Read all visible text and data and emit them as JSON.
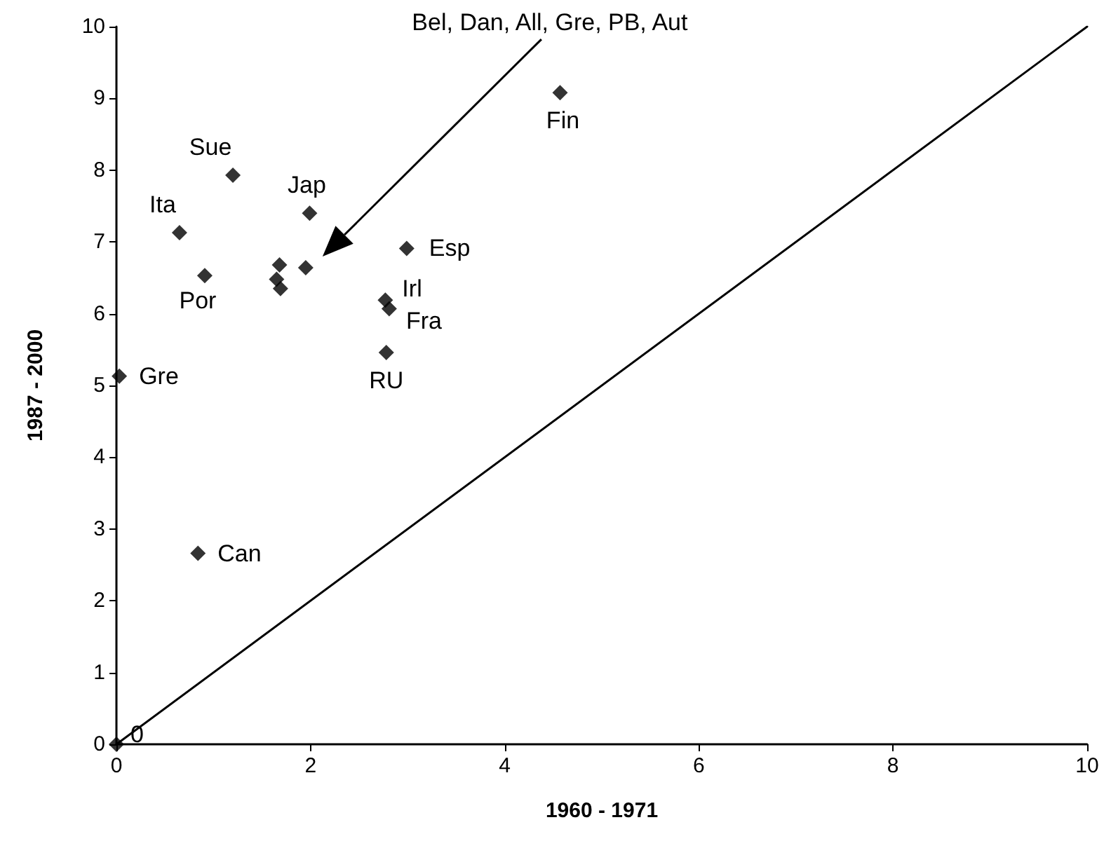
{
  "chart_data": {
    "type": "scatter",
    "xlabel": "1960 - 1971",
    "ylabel": "1987 - 2000",
    "xlim": [
      0,
      10
    ],
    "ylim": [
      0,
      10
    ],
    "xticks": [
      0,
      2,
      4,
      6,
      8,
      10
    ],
    "yticks": [
      0,
      1,
      2,
      3,
      4,
      5,
      6,
      7,
      8,
      9,
      10
    ],
    "grid": false,
    "marker": "diamond",
    "series": [
      {
        "color": "#000000",
        "x": [
          0,
          0.84,
          0.03,
          0.91,
          0.65,
          1.2,
          1.99,
          1.68,
          1.65,
          1.69,
          1.95,
          2.99,
          2.77,
          2.81,
          2.78,
          4.57
        ],
        "values": [
          0,
          2.66,
          5.13,
          6.53,
          7.13,
          7.93,
          7.4,
          6.68,
          6.48,
          6.35,
          6.64,
          6.91,
          6.19,
          6.07,
          5.46,
          9.08
        ]
      },
      {
        "type": "line",
        "color": "#000000",
        "marker": "none",
        "x": [
          0,
          10
        ],
        "values": [
          0,
          10
        ]
      }
    ],
    "annotations": [
      {
        "text": "0",
        "x": 0,
        "y": 0
      },
      {
        "text": "Can",
        "x": 0.84,
        "y": 2.66
      },
      {
        "text": "Gre",
        "x": 0.03,
        "y": 5.13
      },
      {
        "text": "Por",
        "x": 0.91,
        "y": 6.53
      },
      {
        "text": "Ita",
        "x": 0.65,
        "y": 7.13
      },
      {
        "text": "Sue",
        "x": 1.2,
        "y": 7.93
      },
      {
        "text": "Jap",
        "x": 1.99,
        "y": 7.4
      },
      {
        "text": "Esp",
        "x": 2.99,
        "y": 6.91
      },
      {
        "text": "Irl",
        "x": 2.77,
        "y": 6.19
      },
      {
        "text": "Fra",
        "x": 2.81,
        "y": 6.07
      },
      {
        "text": "RU",
        "x": 2.78,
        "y": 5.46
      },
      {
        "text": "Fin",
        "x": 4.57,
        "y": 9.08
      },
      "Bel, Dan, All, Gre, PB, Aut"
    ]
  }
}
